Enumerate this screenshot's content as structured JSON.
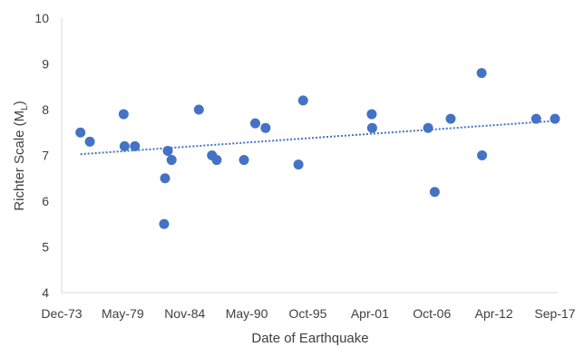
{
  "chart_data": {
    "type": "scatter",
    "title": "",
    "xlabel": "Date of Earthquake",
    "ylabel": "Richter Scale (M",
    "ylabel_subscript": "L",
    "ylabel_close": ")",
    "ylim": [
      4,
      10
    ],
    "yticks": [
      "4",
      "5",
      "6",
      "7",
      "8",
      "9",
      "10"
    ],
    "xlim": [
      "1973-12-01",
      "2017-09-01"
    ],
    "xticks": [
      "Dec-73",
      "May-79",
      "Nov-84",
      "May-90",
      "Oct-95",
      "Apr-01",
      "Oct-06",
      "Apr-12",
      "Sep-17"
    ],
    "xtick_dates": [
      "1973-12-01",
      "1979-05-01",
      "1984-11-01",
      "1990-05-01",
      "1995-10-01",
      "2001-04-01",
      "2006-10-01",
      "2012-04-01",
      "2017-09-01"
    ],
    "points": [
      {
        "x": "1975-08-01",
        "y": 7.5
      },
      {
        "x": "1976-06-01",
        "y": 7.3
      },
      {
        "x": "1979-06-01",
        "y": 7.9
      },
      {
        "x": "1979-07-01",
        "y": 7.2
      },
      {
        "x": "1980-06-01",
        "y": 7.2
      },
      {
        "x": "1983-01-01",
        "y": 5.5
      },
      {
        "x": "1983-02-01",
        "y": 6.5
      },
      {
        "x": "1983-05-01",
        "y": 7.1
      },
      {
        "x": "1983-09-01",
        "y": 6.9
      },
      {
        "x": "1986-02-01",
        "y": 8.0
      },
      {
        "x": "1987-04-01",
        "y": 7.0
      },
      {
        "x": "1987-09-01",
        "y": 6.9
      },
      {
        "x": "1990-02-01",
        "y": 6.9
      },
      {
        "x": "1991-02-01",
        "y": 7.7
      },
      {
        "x": "1992-01-01",
        "y": 7.6
      },
      {
        "x": "1994-12-01",
        "y": 6.8
      },
      {
        "x": "1995-05-01",
        "y": 8.2
      },
      {
        "x": "2001-06-01",
        "y": 7.9
      },
      {
        "x": "2001-06-15",
        "y": 7.6
      },
      {
        "x": "2006-06-01",
        "y": 7.6
      },
      {
        "x": "2007-01-01",
        "y": 6.2
      },
      {
        "x": "2008-06-01",
        "y": 7.8
      },
      {
        "x": "2011-03-01",
        "y": 8.8
      },
      {
        "x": "2011-03-15",
        "y": 7.0
      },
      {
        "x": "2016-01-01",
        "y": 7.8
      },
      {
        "x": "2017-09-01",
        "y": 7.8
      }
    ],
    "trendline": {
      "style": "dotted",
      "type": "linear"
    },
    "grid": false,
    "legend": "none",
    "colors": {
      "marker": "#4472c4",
      "trendline": "#4472c4",
      "axis": "#d9d9d9",
      "text": "#404040"
    }
  }
}
